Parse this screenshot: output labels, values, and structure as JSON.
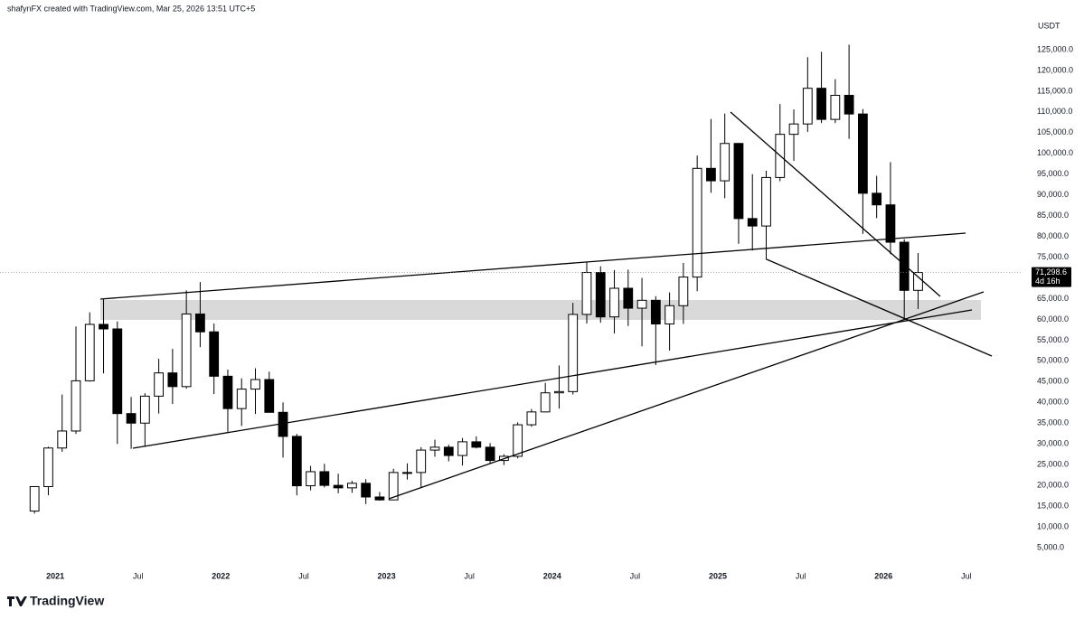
{
  "header": "shafynFX created with TradingView.com, Mar 25, 2026 13:51 UTC+5",
  "logo": "TradingView",
  "chart_data": {
    "type": "candlestick",
    "y_axis_label": "USDT",
    "up_color": "#ffffff",
    "down_color": "#000000",
    "wick_color": "#000000",
    "grid": false,
    "x": [
      "2020-11",
      "2020-12",
      "2021-01",
      "2021-02",
      "2021-03",
      "2021-04",
      "2021-05",
      "2021-06",
      "2021-07",
      "2021-08",
      "2021-09",
      "2021-10",
      "2021-11",
      "2021-12",
      "2022-01",
      "2022-02",
      "2022-03",
      "2022-04",
      "2022-05",
      "2022-06",
      "2022-07",
      "2022-08",
      "2022-09",
      "2022-10",
      "2022-11",
      "2022-12",
      "2023-01",
      "2023-02",
      "2023-03",
      "2023-04",
      "2023-05",
      "2023-06",
      "2023-07",
      "2023-08",
      "2023-09",
      "2023-10",
      "2023-11",
      "2023-12",
      "2024-01",
      "2024-02",
      "2024-03",
      "2024-04",
      "2024-05",
      "2024-06",
      "2024-07",
      "2024-08",
      "2024-09",
      "2024-10",
      "2024-11",
      "2024-12",
      "2025-01",
      "2025-02",
      "2025-03",
      "2025-04",
      "2025-05",
      "2025-06",
      "2025-07",
      "2025-08",
      "2025-09",
      "2025-10",
      "2025-11",
      "2025-12",
      "2026-01",
      "2026-02",
      "2026-03"
    ],
    "open": [
      13800,
      19700,
      29000,
      33100,
      45200,
      58800,
      57700,
      37300,
      35000,
      41500,
      47100,
      43800,
      61300,
      57000,
      46300,
      38500,
      43200,
      45500,
      37600,
      31800,
      19900,
      23300,
      20000,
      19400,
      20500,
      17200,
      16500,
      23100,
      23100,
      28500,
      29200,
      27200,
      30500,
      29200,
      26000,
      27000,
      34600,
      37700,
      42300,
      42600,
      61200,
      71300,
      60600,
      67500,
      62700,
      64600,
      58900,
      63300,
      70200,
      96400,
      93400,
      102400,
      84300,
      82500,
      94200,
      104600,
      107100,
      115700,
      108200,
      114000,
      109500,
      90400,
      87600,
      78600,
      67000
    ],
    "high": [
      19800,
      29300,
      41900,
      58300,
      61700,
      64800,
      59500,
      41300,
      42200,
      50500,
      52900,
      67000,
      69000,
      59000,
      47900,
      45800,
      48200,
      47400,
      40000,
      32400,
      24700,
      25200,
      22800,
      21100,
      21500,
      18400,
      24000,
      25300,
      29200,
      31000,
      29800,
      31400,
      31800,
      30200,
      27500,
      35200,
      38400,
      44700,
      48900,
      64000,
      73800,
      72800,
      71900,
      72000,
      70000,
      65600,
      66500,
      73600,
      99500,
      108300,
      109600,
      102500,
      95000,
      95800,
      111900,
      110600,
      123200,
      124500,
      117900,
      126200,
      110700,
      94600,
      97900,
      79300,
      76000
    ],
    "low": [
      13200,
      17600,
      28100,
      32400,
      45000,
      47000,
      30000,
      28800,
      29300,
      37300,
      39600,
      43300,
      53300,
      42000,
      32900,
      34300,
      37200,
      37600,
      26700,
      17600,
      18800,
      19500,
      18100,
      18200,
      15500,
      16300,
      16500,
      21400,
      19500,
      26900,
      25800,
      24800,
      28900,
      25200,
      24900,
      26500,
      34100,
      37600,
      38500,
      41900,
      59000,
      59200,
      56600,
      58400,
      53500,
      49000,
      52500,
      58900,
      66800,
      90500,
      89200,
      78200,
      76600,
      74400,
      93300,
      98200,
      105200,
      107300,
      107300,
      103500,
      80600,
      84400,
      75700,
      60000,
      62500
    ],
    "close": [
      19700,
      29000,
      33100,
      45200,
      58800,
      57700,
      37300,
      35000,
      41500,
      47100,
      43800,
      61300,
      57000,
      46300,
      38500,
      43200,
      45500,
      37600,
      31800,
      19900,
      23300,
      20000,
      19400,
      20500,
      17200,
      16500,
      23100,
      23100,
      28500,
      29200,
      27200,
      30500,
      29200,
      26000,
      27000,
      34600,
      37700,
      42300,
      42600,
      61200,
      71300,
      60600,
      67500,
      62700,
      64600,
      58900,
      63300,
      70200,
      96400,
      93400,
      102400,
      84300,
      82500,
      94200,
      104600,
      107100,
      115700,
      108200,
      114000,
      109500,
      90400,
      87600,
      78600,
      67000,
      71298.6
    ],
    "last_price": {
      "value": 71298.6,
      "label": "71,298.6"
    },
    "countdown": "4d 16h",
    "xlim": [
      "2020-09",
      "2026-11"
    ],
    "xticks": [
      {
        "value": "2021-01",
        "label": "2021"
      },
      {
        "value": "2021-07",
        "label": "Jul"
      },
      {
        "value": "2022-01",
        "label": "2022"
      },
      {
        "value": "2022-07",
        "label": "Jul"
      },
      {
        "value": "2023-01",
        "label": "2023"
      },
      {
        "value": "2023-07",
        "label": "Jul"
      },
      {
        "value": "2024-01",
        "label": "2024"
      },
      {
        "value": "2024-07",
        "label": "Jul"
      },
      {
        "value": "2025-01",
        "label": "2025"
      },
      {
        "value": "2025-07",
        "label": "Jul"
      },
      {
        "value": "2026-01",
        "label": "2026"
      },
      {
        "value": "2026-07",
        "label": "Jul"
      }
    ],
    "ylim": [
      860,
      130440
    ],
    "yticks": [
      {
        "value": 5000,
        "label": "5,000.0"
      },
      {
        "value": 10000,
        "label": "10,000.0"
      },
      {
        "value": 15000,
        "label": "15,000.0"
      },
      {
        "value": 20000,
        "label": "20,000.0"
      },
      {
        "value": 25000,
        "label": "25,000.0"
      },
      {
        "value": 30000,
        "label": "30,000.0"
      },
      {
        "value": 35000,
        "label": "35,000.0"
      },
      {
        "value": 40000,
        "label": "40,000.0"
      },
      {
        "value": 45000,
        "label": "45,000.0"
      },
      {
        "value": 50000,
        "label": "50,000.0"
      },
      {
        "value": 55000,
        "label": "55,000.0"
      },
      {
        "value": 60000,
        "label": "60,000.0"
      },
      {
        "value": 65000,
        "label": "65,000.0"
      },
      {
        "value": 70000,
        "label": "70,000.0"
      },
      {
        "value": 75000,
        "label": "75,000.0"
      },
      {
        "value": 80000,
        "label": "80,000.0"
      },
      {
        "value": 85000,
        "label": "85,000.0"
      },
      {
        "value": 90000,
        "label": "90,000.0"
      },
      {
        "value": 95000,
        "label": "95,000.0"
      },
      {
        "value": 100000,
        "label": "100,000.0"
      },
      {
        "value": 105000,
        "label": "105,000.0"
      },
      {
        "value": 110000,
        "label": "110,000.0"
      },
      {
        "value": 115000,
        "label": "115,000.0"
      },
      {
        "value": 120000,
        "label": "120,000.0"
      },
      {
        "value": 125000,
        "label": "125,000.0"
      }
    ]
  }
}
